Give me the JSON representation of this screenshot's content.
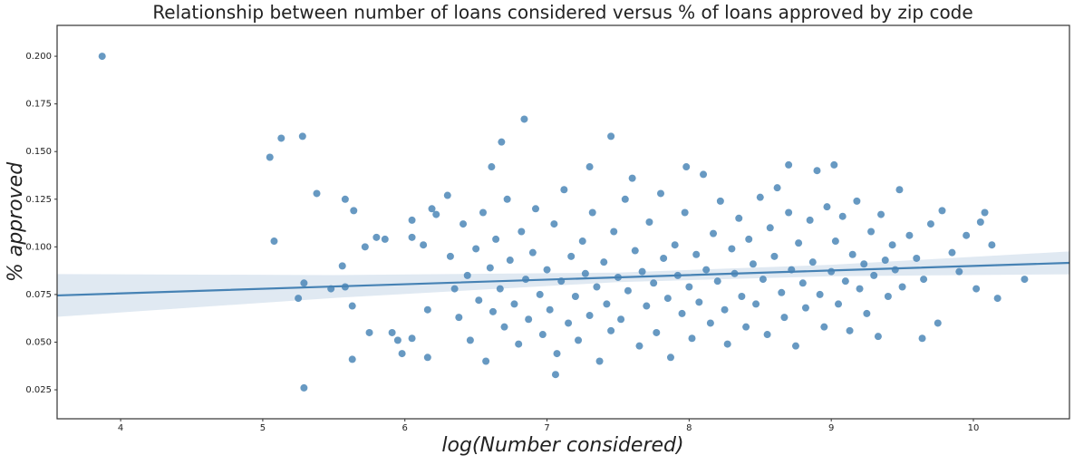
{
  "chart_data": {
    "type": "scatter",
    "title": "Relationship between number of loans considered versus % of loans approved by zip code",
    "xlabel": "log(Number considered)",
    "ylabel": "% approved",
    "xlim": [
      3.553,
      10.676
    ],
    "ylim": [
      0.0098,
      0.2162
    ],
    "xticks": [
      4,
      5,
      6,
      7,
      8,
      9,
      10
    ],
    "yticks": [
      0.025,
      {
        "value": 0.05,
        "label": "0.050"
      },
      0.075,
      {
        "value": 0.1,
        "label": "0.100"
      },
      0.125,
      {
        "value": 0.15,
        "label": "0.150"
      },
      0.175,
      {
        "value": 0.2,
        "label": "0.200"
      }
    ],
    "grid": false,
    "series": [
      {
        "color": "#4682b4",
        "x": [
          3.87,
          5.05,
          5.13,
          5.28,
          5.08,
          5.25,
          5.29,
          5.29,
          5.38,
          5.58,
          5.64,
          5.56,
          5.48,
          5.58,
          5.63,
          5.63,
          5.72,
          5.75,
          5.8,
          5.86,
          5.91,
          5.95,
          5.98,
          6.05,
          6.05,
          6.05,
          6.13,
          6.16,
          6.16,
          6.19,
          6.22,
          6.3,
          6.84,
          6.68,
          7.45,
          6.61,
          7.3,
          7.98,
          8.7,
          9.02,
          7.06,
          9.64,
          9.75,
          10.36,
          10.17,
          10.13,
          10.08,
          10.05,
          6.32,
          6.35,
          6.38,
          6.41,
          6.44,
          6.46,
          6.5,
          6.52,
          6.55,
          6.57,
          6.6,
          6.62,
          6.64,
          6.67,
          6.7,
          6.72,
          6.74,
          6.77,
          6.8,
          6.82,
          6.85,
          6.87,
          6.9,
          6.92,
          6.95,
          6.97,
          7.0,
          7.02,
          7.05,
          7.07,
          7.1,
          7.12,
          7.15,
          7.17,
          7.2,
          7.22,
          7.25,
          7.27,
          7.3,
          7.32,
          7.35,
          7.37,
          7.4,
          7.42,
          7.45,
          7.47,
          7.5,
          7.52,
          7.55,
          7.57,
          7.6,
          7.62,
          7.65,
          7.67,
          7.7,
          7.72,
          7.75,
          7.77,
          7.8,
          7.82,
          7.85,
          7.87,
          7.9,
          7.92,
          7.95,
          7.97,
          8.0,
          8.02,
          8.05,
          8.07,
          8.1,
          8.12,
          8.15,
          8.17,
          8.2,
          8.22,
          8.25,
          8.27,
          8.3,
          8.32,
          8.35,
          8.37,
          8.4,
          8.42,
          8.45,
          8.47,
          8.5,
          8.52,
          8.55,
          8.57,
          8.6,
          8.62,
          8.65,
          8.67,
          8.7,
          8.72,
          8.75,
          8.77,
          8.8,
          8.82,
          8.85,
          8.87,
          8.9,
          8.92,
          8.95,
          8.97,
          9.0,
          9.03,
          9.05,
          9.08,
          9.1,
          9.13,
          9.15,
          9.18,
          9.2,
          9.23,
          9.25,
          9.28,
          9.3,
          9.33,
          9.35,
          9.38,
          9.4,
          9.43,
          9.45,
          9.48,
          9.5,
          9.55,
          9.6,
          9.65,
          9.7,
          9.78,
          9.85,
          9.9,
          9.95,
          10.02
        ],
        "values": [
          0.2,
          0.147,
          0.157,
          0.158,
          0.103,
          0.073,
          0.081,
          0.026,
          0.128,
          0.125,
          0.119,
          0.09,
          0.078,
          0.079,
          0.069,
          0.041,
          0.1,
          0.055,
          0.105,
          0.104,
          0.055,
          0.051,
          0.044,
          0.114,
          0.105,
          0.052,
          0.101,
          0.042,
          0.067,
          0.12,
          0.117,
          0.127,
          0.167,
          0.155,
          0.158,
          0.142,
          0.142,
          0.142,
          0.143,
          0.143,
          0.033,
          0.052,
          0.06,
          0.083,
          0.073,
          0.101,
          0.118,
          0.113,
          0.095,
          0.078,
          0.063,
          0.112,
          0.085,
          0.051,
          0.099,
          0.072,
          0.118,
          0.04,
          0.089,
          0.066,
          0.104,
          0.078,
          0.058,
          0.125,
          0.093,
          0.07,
          0.049,
          0.108,
          0.083,
          0.062,
          0.097,
          0.12,
          0.075,
          0.054,
          0.088,
          0.067,
          0.112,
          0.044,
          0.082,
          0.13,
          0.06,
          0.095,
          0.074,
          0.051,
          0.103,
          0.086,
          0.064,
          0.118,
          0.079,
          0.04,
          0.092,
          0.07,
          0.056,
          0.108,
          0.084,
          0.062,
          0.125,
          0.077,
          0.136,
          0.098,
          0.048,
          0.087,
          0.069,
          0.113,
          0.081,
          0.055,
          0.128,
          0.094,
          0.073,
          0.042,
          0.101,
          0.085,
          0.065,
          0.118,
          0.079,
          0.052,
          0.096,
          0.071,
          0.138,
          0.088,
          0.06,
          0.107,
          0.082,
          0.124,
          0.067,
          0.049,
          0.099,
          0.086,
          0.115,
          0.074,
          0.058,
          0.104,
          0.091,
          0.07,
          0.126,
          0.083,
          0.054,
          0.11,
          0.095,
          0.131,
          0.076,
          0.063,
          0.118,
          0.088,
          0.048,
          0.102,
          0.081,
          0.068,
          0.114,
          0.092,
          0.14,
          0.075,
          0.058,
          0.121,
          0.087,
          0.103,
          0.07,
          0.116,
          0.082,
          0.056,
          0.096,
          0.124,
          0.078,
          0.091,
          0.065,
          0.108,
          0.085,
          0.053,
          0.117,
          0.093,
          0.074,
          0.101,
          0.088,
          0.13,
          0.079,
          0.106,
          0.094,
          0.083,
          0.112,
          0.119,
          0.097,
          0.087,
          0.106,
          0.078
        ]
      }
    ],
    "fit": {
      "color": "#4682b4",
      "band_color": "#c6d7e8",
      "x": [
        3.553,
        5.5,
        7.5,
        9,
        10.676
      ],
      "values": [
        0.0745,
        0.0792,
        0.084,
        0.0876,
        0.0916
      ],
      "lower": [
        0.0633,
        0.0732,
        0.0815,
        0.0846,
        0.0856
      ],
      "upper": [
        0.0857,
        0.0852,
        0.0865,
        0.0906,
        0.0976
      ]
    }
  }
}
